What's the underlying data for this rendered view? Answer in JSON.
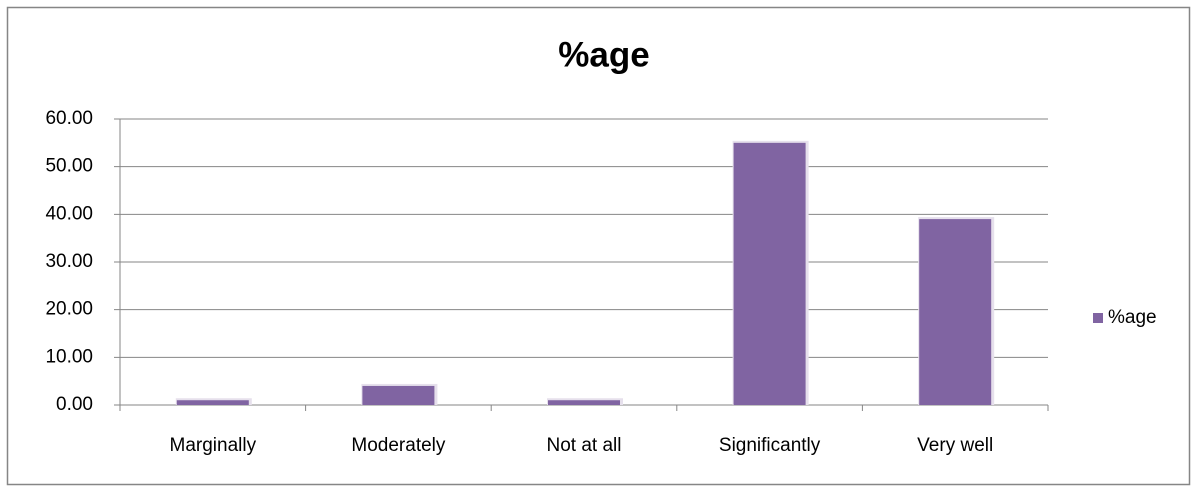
{
  "chart_data": {
    "type": "bar",
    "title": "%age",
    "categories": [
      "Marginally",
      "Moderately",
      "Not at all",
      "Significantly",
      "Very well"
    ],
    "series": [
      {
        "name": "%age",
        "color": "#8064a2",
        "values": [
          1,
          4,
          1,
          55,
          39
        ]
      }
    ],
    "ylim": [
      0,
      60
    ],
    "yticks": [
      {
        "value": 0,
        "label": "0.00"
      },
      {
        "value": 10,
        "label": "10.00"
      },
      {
        "value": 20,
        "label": "20.00"
      },
      {
        "value": 30,
        "label": "30.00"
      },
      {
        "value": 40,
        "label": "40.00"
      },
      {
        "value": 50,
        "label": "50.00"
      },
      {
        "value": 60,
        "label": "60.00"
      }
    ],
    "grid": true,
    "legend": "right"
  }
}
